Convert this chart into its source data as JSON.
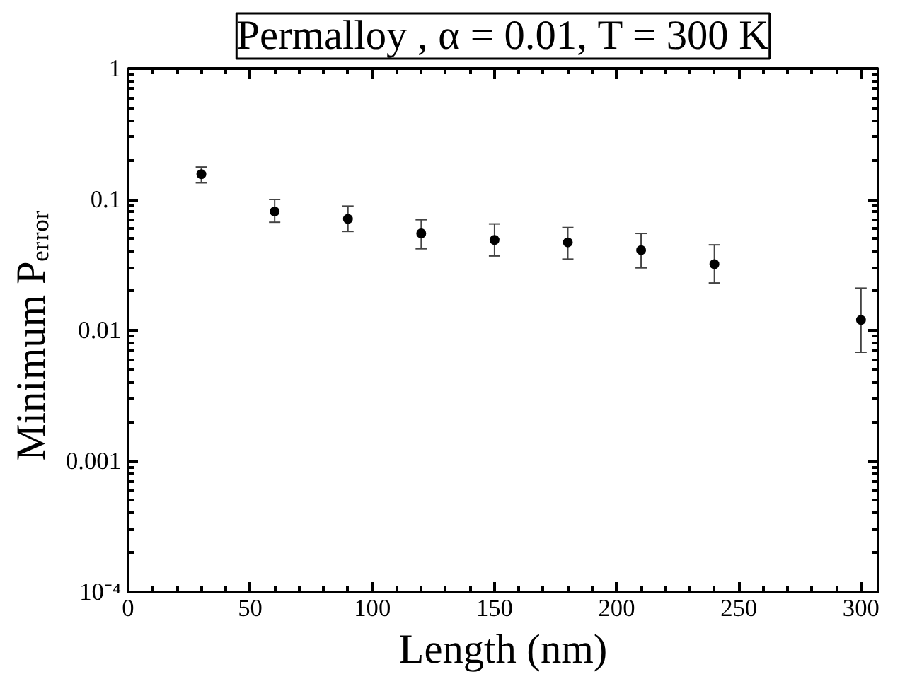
{
  "chart_data": {
    "type": "scatter",
    "title": "Permalloy , α = 0.01, T = 300 K",
    "xlabel": "Length (nm)",
    "ylabel": "Minimum  Pₑᵣᵣₒᵣ",
    "x": [
      30,
      60,
      90,
      120,
      150,
      180,
      210,
      240,
      300
    ],
    "series": [
      {
        "color": "#000000",
        "values": [
          0.156,
          0.081,
          0.071,
          0.055,
          0.049,
          0.047,
          0.041,
          0.032,
          0.012
        ],
        "errors": [
          [
            0.134,
            0.177
          ],
          [
            0.067,
            0.1
          ],
          [
            0.057,
            0.089
          ],
          [
            0.042,
            0.07
          ],
          [
            0.037,
            0.065
          ],
          [
            0.035,
            0.061
          ],
          [
            0.03,
            0.055
          ],
          [
            0.023,
            0.045
          ],
          [
            0.0068,
            0.021
          ]
        ]
      }
    ],
    "log": "y",
    "xlim": [
      0,
      307
    ],
    "ylim": [
      0.0001,
      1
    ],
    "xticks": [
      0,
      50,
      100,
      150,
      200,
      250,
      300
    ],
    "yticks": [
      1,
      0.1,
      0.01,
      0.001,
      {
        "value": 0.0001,
        "label": "10⁻⁴"
      }
    ],
    "marker": "circle",
    "grid": false
  }
}
